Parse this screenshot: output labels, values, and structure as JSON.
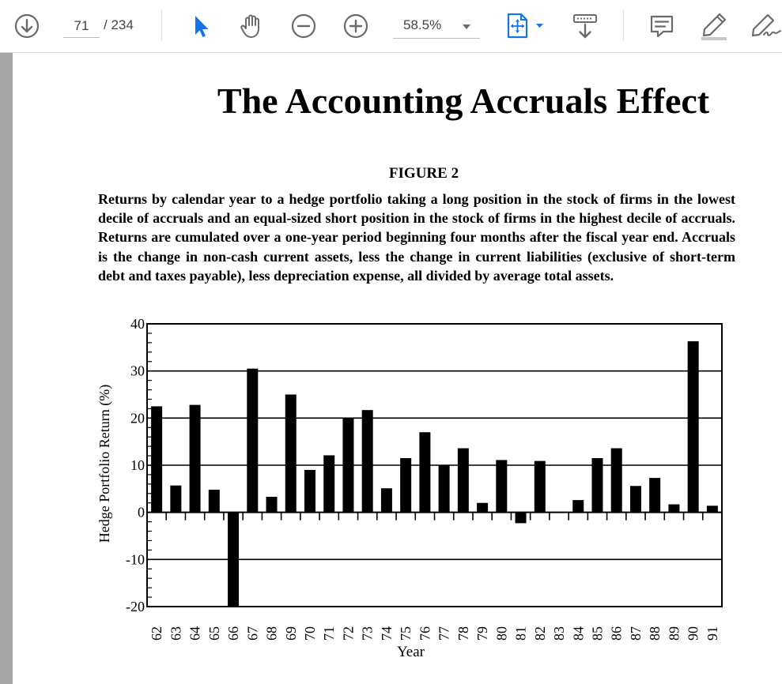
{
  "toolbar": {
    "page_current": "71",
    "page_total": "/ 234",
    "zoom": "58.5%",
    "icons": [
      "download-icon",
      "select-arrow-icon",
      "hand-icon",
      "zoom-out-icon",
      "zoom-in-icon",
      "zoom-caret-icon",
      "fit-page-icon",
      "scroll-mode-icon",
      "comment-icon",
      "highlight-icon",
      "sign-icon"
    ],
    "accent_color": "#1473e6"
  },
  "document": {
    "title": "The Accounting Accruals Effect",
    "figure_label": "FIGURE 2",
    "caption": "Returns by calendar year to a hedge portfolio taking a long position in the stock of firms in the lowest decile of accruals and an equal-sized short position in the stock of firms in the highest decile of accruals. Returns are cumulated over a one-year period beginning four months after the fiscal year end. Accruals is the change in non-cash current assets, less the change in current liabilities (exclusive of short-term debt and taxes payable), less depreciation expense, all divided by average total assets."
  },
  "chart_data": {
    "type": "bar",
    "title": "",
    "xlabel": "Year",
    "ylabel": "Hedge Portfolio Return (%)",
    "ylim": [
      -20,
      40
    ],
    "yticks": [
      "40",
      "30",
      "20",
      "10",
      "0",
      "-10",
      "-20"
    ],
    "grid": true,
    "categories": [
      "62",
      "63",
      "64",
      "65",
      "66",
      "67",
      "68",
      "69",
      "70",
      "71",
      "72",
      "73",
      "74",
      "75",
      "76",
      "77",
      "78",
      "79",
      "80",
      "81",
      "82",
      "83",
      "84",
      "85",
      "86",
      "87",
      "88",
      "89",
      "90",
      "91"
    ],
    "values": [
      22.5,
      5.7,
      22.8,
      4.8,
      -20,
      30.5,
      3.3,
      25,
      9,
      12.1,
      20,
      21.7,
      5.1,
      11.5,
      17,
      10,
      13.6,
      2,
      11.1,
      -2.3,
      10.9,
      0,
      2.6,
      11.5,
      13.6,
      5.6,
      7.3,
      1.7,
      36.3,
      1.4
    ]
  }
}
